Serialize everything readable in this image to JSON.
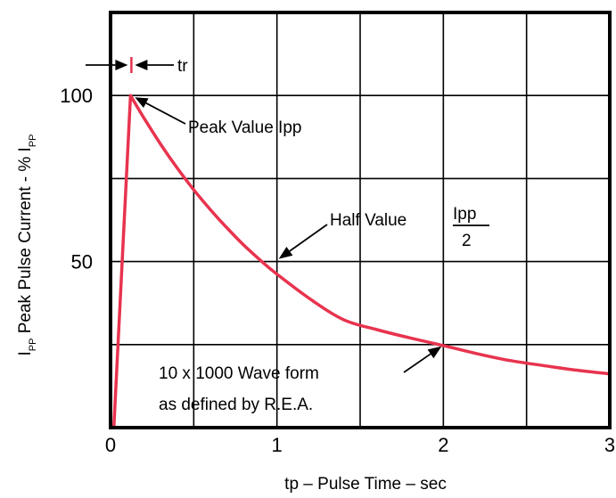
{
  "chart_data": {
    "type": "line",
    "title": "",
    "xlabel": "tp – Pulse Time – sec",
    "ylabel": {
      "prefix": "I",
      "prefix_sub": "PP",
      "main": " Peak Pulse Current - % I",
      "suffix_sub": "PP"
    },
    "xlim": [
      0,
      3
    ],
    "ylim": [
      0,
      125
    ],
    "x_gridlines": [
      0.5,
      1,
      1.5,
      2,
      2.5
    ],
    "y_gridlines": [
      25,
      50,
      75,
      100
    ],
    "x_ticks": [
      {
        "value": 0,
        "label": "0"
      },
      {
        "value": 1,
        "label": "1"
      },
      {
        "value": 2,
        "label": "2"
      },
      {
        "value": 3,
        "label": "3"
      }
    ],
    "y_ticks": [
      {
        "value": 50,
        "label": "50"
      },
      {
        "value": 100,
        "label": "100"
      }
    ],
    "grid": true,
    "series": [
      {
        "color": "#e8334e",
        "x": [
          0.02,
          0.12,
          0.2,
          0.3,
          0.4,
          0.5,
          0.6,
          0.7,
          0.8,
          0.9,
          1.0,
          1.2,
          1.4,
          1.6,
          1.8,
          2.0,
          2.2,
          2.4,
          2.6,
          2.8,
          3.0
        ],
        "y": [
          0,
          100,
          93.3,
          85.4,
          78.2,
          71.6,
          65.6,
          60.1,
          55.0,
          50.4,
          46.2,
          38.7,
          32.5,
          29.5,
          27.0,
          24.7,
          22.3,
          20.2,
          18.7,
          17.3,
          16.2
        ]
      }
    ],
    "annotations": {
      "tr": {
        "text": "tr",
        "x_start": 0.02,
        "x_end": 0.12,
        "y": 110
      },
      "peak": {
        "text": "Peak Value Ipp",
        "point_x": 0.12,
        "point_y": 100
      },
      "half": {
        "text": "Half Value",
        "fraction_numerator": "Ipp",
        "fraction_denominator": "2",
        "point_x": 1.0,
        "point_y": 50
      },
      "wave": {
        "line1": "10 x 1000 Wave form",
        "line2": "as defined by R.E.A.",
        "point_x": 2.0,
        "point_y": 25
      }
    }
  }
}
